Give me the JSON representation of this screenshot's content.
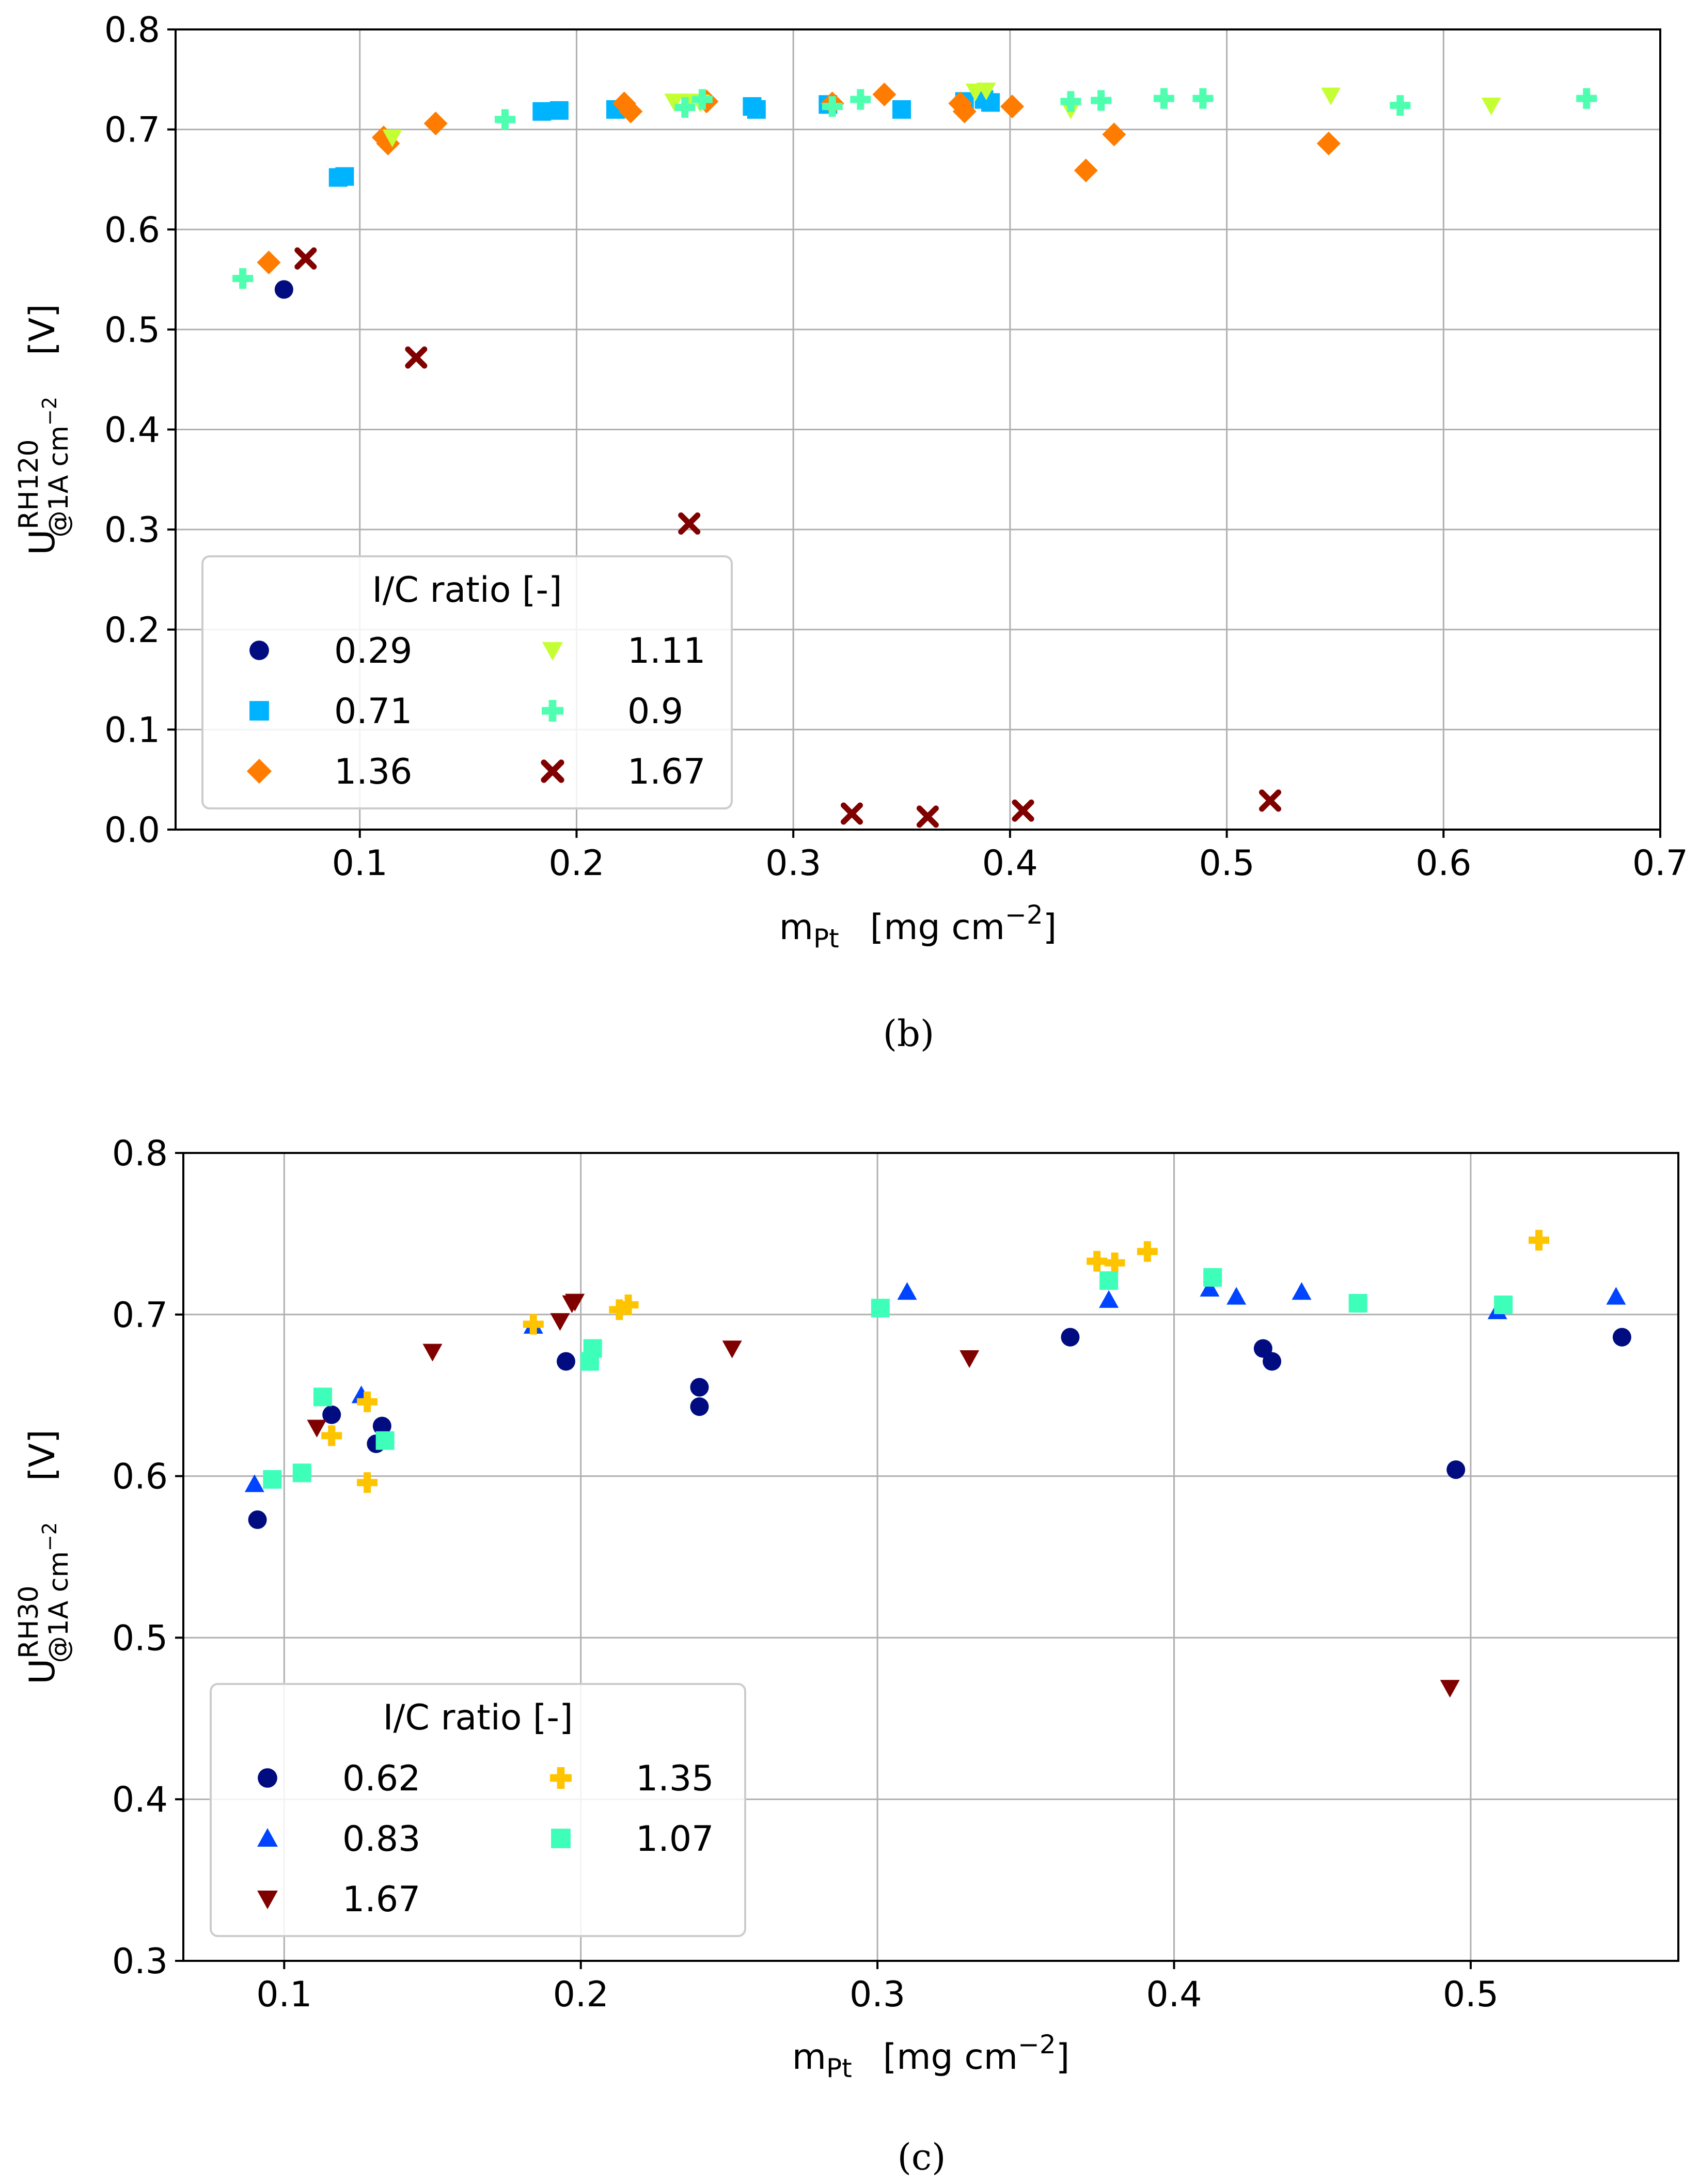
{
  "chart_data": [
    {
      "type": "scatter",
      "caption": "(b)",
      "ylabel_main": "U",
      "ylabel_sup": "RH120",
      "ylabel_sub": "@1A cm",
      "ylabel_sub_exp": "−2",
      "ylabel_unit": "[V]",
      "xlabel_main": "m",
      "xlabel_sub": "Pt",
      "xlabel_unit": "[mg cm",
      "xlabel_unit_exp": "−2",
      "xlabel_unit_close": "]",
      "xlim": [
        0.015,
        0.7
      ],
      "ylim": [
        0.0,
        0.8
      ],
      "xticks": [
        0.1,
        0.2,
        0.3,
        0.4,
        0.5,
        0.6,
        0.7
      ],
      "yticks": [
        0.0,
        0.1,
        0.2,
        0.3,
        0.4,
        0.5,
        0.6,
        0.7,
        0.8
      ],
      "grid": true,
      "legend": {
        "title": "I/C ratio [-]",
        "placement": "lower-left",
        "ncol": 2
      },
      "series": [
        {
          "name": "0.29",
          "marker": "circle",
          "color": "#000c80",
          "x": [
            0.065
          ],
          "y": [
            0.54
          ]
        },
        {
          "name": "0.71",
          "marker": "square",
          "color": "#00b3ff",
          "x": [
            0.09,
            0.093,
            0.184,
            0.192,
            0.218,
            0.281,
            0.283,
            0.316,
            0.35,
            0.379,
            0.388,
            0.391
          ],
          "y": [
            0.652,
            0.653,
            0.718,
            0.719,
            0.72,
            0.723,
            0.72,
            0.725,
            0.72,
            0.728,
            0.73,
            0.727
          ]
        },
        {
          "name": "1.36",
          "marker": "diamond",
          "color": "#ff7c00",
          "x": [
            0.058,
            0.111,
            0.113,
            0.135,
            0.222,
            0.225,
            0.26,
            0.318,
            0.342,
            0.377,
            0.379,
            0.401,
            0.435,
            0.448,
            0.547
          ],
          "y": [
            0.567,
            0.692,
            0.686,
            0.706,
            0.726,
            0.718,
            0.728,
            0.726,
            0.735,
            0.726,
            0.718,
            0.723,
            0.659,
            0.695,
            0.686
          ]
        },
        {
          "name": "1.11",
          "marker": "triangle-down",
          "color": "#c4ff33",
          "x": [
            0.115,
            0.245,
            0.252,
            0.257,
            0.384,
            0.389,
            0.428,
            0.548,
            0.622
          ],
          "y": [
            0.692,
            0.728,
            0.728,
            0.727,
            0.738,
            0.739,
            0.72,
            0.734,
            0.724
          ]
        },
        {
          "name": "0.9",
          "marker": "plus",
          "color": "#4fffb0",
          "x": [
            0.046,
            0.167,
            0.25,
            0.258,
            0.318,
            0.331,
            0.428,
            0.442,
            0.471,
            0.489,
            0.58,
            0.666
          ],
          "y": [
            0.551,
            0.71,
            0.722,
            0.73,
            0.723,
            0.73,
            0.728,
            0.729,
            0.731,
            0.731,
            0.724,
            0.731
          ]
        },
        {
          "name": "1.67",
          "marker": "x",
          "color": "#800000",
          "x": [
            0.075,
            0.126,
            0.252,
            0.327,
            0.362,
            0.406,
            0.52
          ],
          "y": [
            0.571,
            0.472,
            0.306,
            0.016,
            0.013,
            0.019,
            0.029
          ]
        }
      ]
    },
    {
      "type": "scatter",
      "caption": "(c)",
      "ylabel_main": "U",
      "ylabel_sup": "RH30",
      "ylabel_sub": "@1A cm",
      "ylabel_sub_exp": "−2",
      "ylabel_unit": "[V]",
      "xlabel_main": "m",
      "xlabel_sub": "Pt",
      "xlabel_unit": "[mg cm",
      "xlabel_unit_exp": "−2",
      "xlabel_unit_close": "]",
      "xlim": [
        0.066,
        0.57
      ],
      "ylim": [
        0.3,
        0.8
      ],
      "xticks": [
        0.1,
        0.2,
        0.3,
        0.4,
        0.5
      ],
      "yticks": [
        0.3,
        0.4,
        0.5,
        0.6,
        0.7,
        0.8
      ],
      "grid": true,
      "legend": {
        "title": "I/C ratio [-]",
        "placement": "lower-left",
        "ncol": 2
      },
      "series": [
        {
          "name": "0.62",
          "marker": "circle",
          "color": "#000c80",
          "x": [
            0.091,
            0.116,
            0.131,
            0.133,
            0.195,
            0.24,
            0.24,
            0.365,
            0.43,
            0.433,
            0.495,
            0.551
          ],
          "y": [
            0.573,
            0.638,
            0.62,
            0.631,
            0.671,
            0.655,
            0.643,
            0.686,
            0.679,
            0.671,
            0.604,
            0.686
          ]
        },
        {
          "name": "0.83",
          "marker": "triangle-up",
          "color": "#0044ff",
          "x": [
            0.09,
            0.126,
            0.184,
            0.31,
            0.378,
            0.412,
            0.421,
            0.443,
            0.509,
            0.549
          ],
          "y": [
            0.595,
            0.65,
            0.693,
            0.714,
            0.709,
            0.716,
            0.711,
            0.714,
            0.702,
            0.711
          ]
        },
        {
          "name": "1.67",
          "marker": "triangle-down",
          "color": "#800000",
          "x": [
            0.111,
            0.15,
            0.193,
            0.197,
            0.198,
            0.251,
            0.331,
            0.493
          ],
          "y": [
            0.63,
            0.677,
            0.696,
            0.707,
            0.708,
            0.679,
            0.673,
            0.469
          ]
        },
        {
          "name": "1.35",
          "marker": "plus",
          "color": "#ffc400",
          "x": [
            0.116,
            0.128,
            0.128,
            0.184,
            0.213,
            0.216,
            0.374,
            0.38,
            0.391,
            0.523
          ],
          "y": [
            0.625,
            0.646,
            0.596,
            0.694,
            0.703,
            0.706,
            0.733,
            0.732,
            0.739,
            0.746
          ]
        },
        {
          "name": "1.07",
          "marker": "square",
          "color": "#3dffb9",
          "x": [
            0.096,
            0.106,
            0.113,
            0.134,
            0.203,
            0.204,
            0.301,
            0.378,
            0.413,
            0.462,
            0.511
          ],
          "y": [
            0.598,
            0.602,
            0.649,
            0.622,
            0.671,
            0.679,
            0.704,
            0.721,
            0.723,
            0.707,
            0.706
          ]
        }
      ]
    }
  ]
}
